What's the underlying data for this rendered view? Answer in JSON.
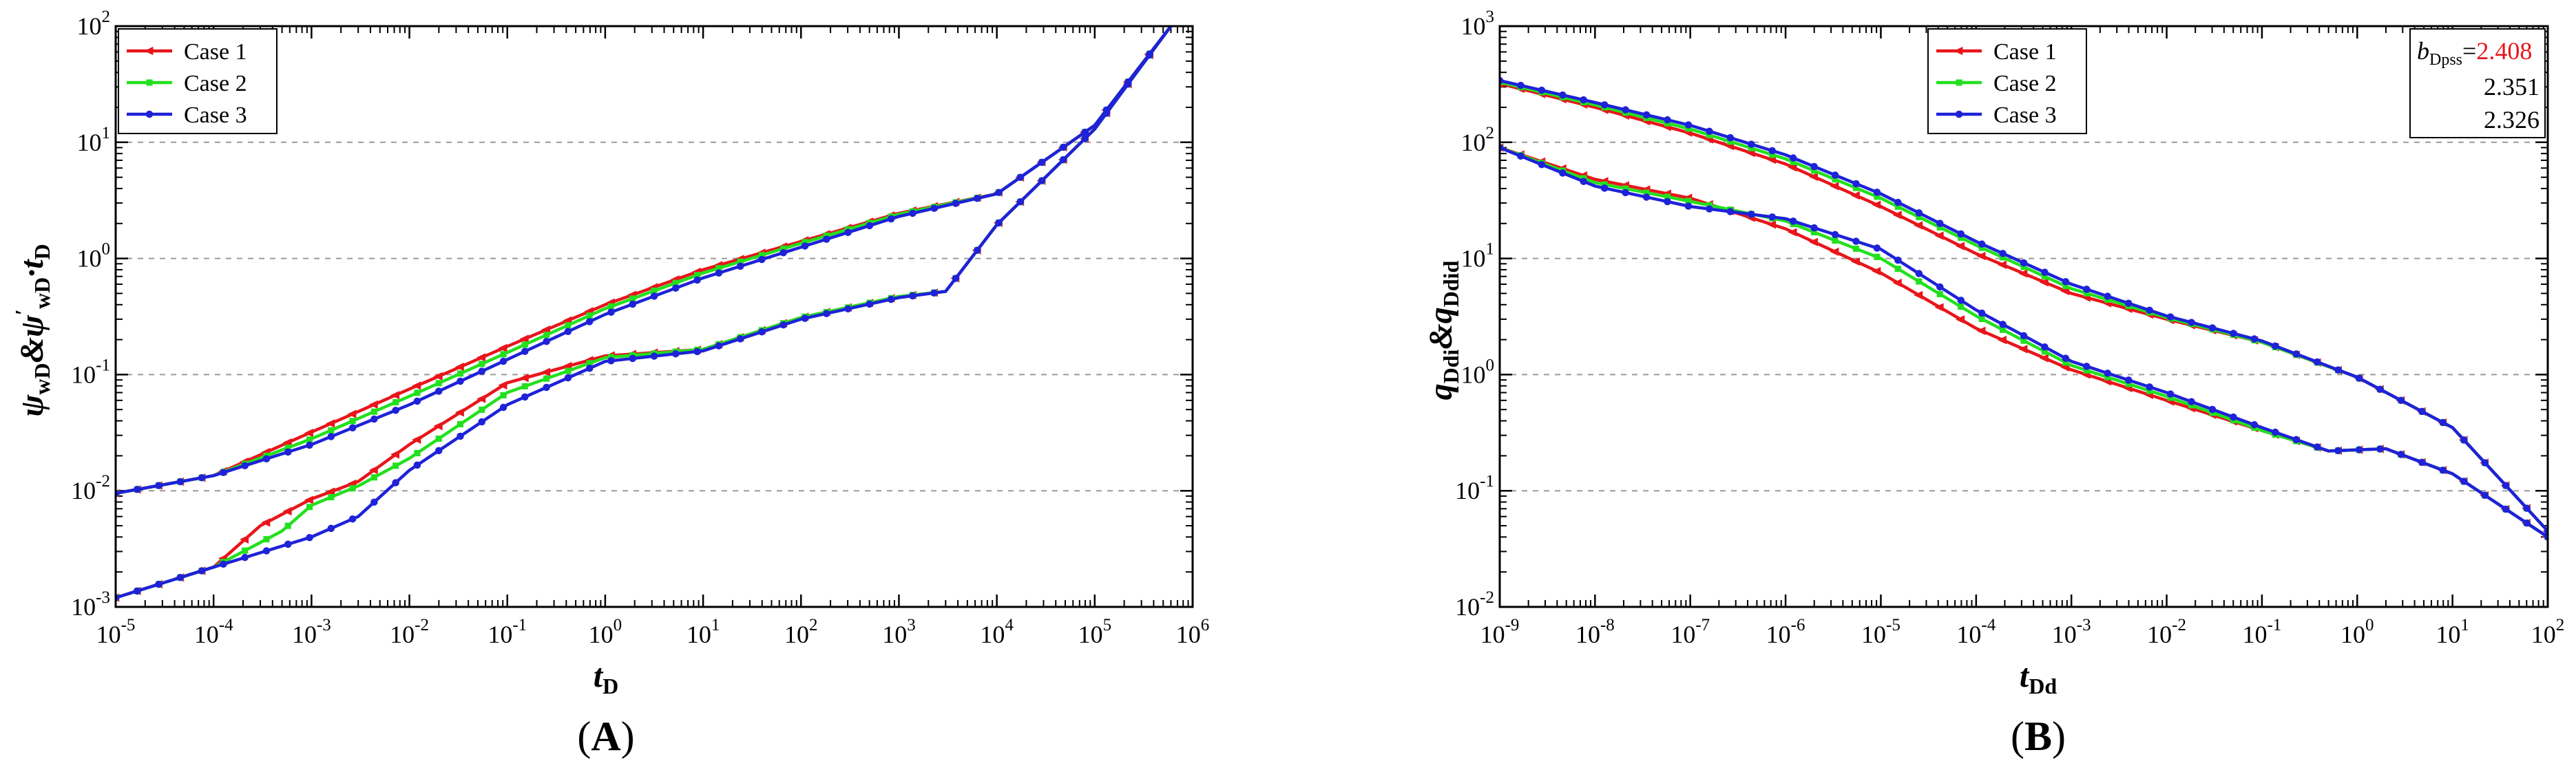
{
  "panels": [
    {
      "label": "A",
      "ylabel": {
        "a": "ψ",
        "asub": "wD",
        "amp": "&",
        "b": "ψ",
        "bsup": "′",
        "bsub": "wD",
        "dot": "·",
        "c": "t",
        "csub": "D"
      },
      "xlabel": {
        "main": "t",
        "sub": "D"
      }
    },
    {
      "label": "B",
      "ylabel": {
        "a": "q",
        "asub": "Ddi",
        "amp": "&",
        "b": "q",
        "bsub": "Ddid"
      },
      "xlabel": {
        "main": "t",
        "sub": "Dd"
      },
      "annotation": {
        "symbol": "b",
        "sub": "Dpss",
        "eq": "=",
        "values": [
          "2.408",
          "2.351",
          "2.326"
        ]
      }
    }
  ],
  "chart_data": [
    {
      "type": "line",
      "xscale": "log",
      "yscale": "log",
      "xlim": [
        1e-05,
        1000000.0
      ],
      "ylim": [
        0.001,
        100.0
      ],
      "grid": "horizontal-dashed",
      "legend": "top-left",
      "xlabel": "tD",
      "ylabel": "ψwD & ψ′wD·tD",
      "x_ticks": [
        {
          "b": "10",
          "e": "-5"
        },
        {
          "b": "10",
          "e": "-4"
        },
        {
          "b": "10",
          "e": "-3"
        },
        {
          "b": "10",
          "e": "-2"
        },
        {
          "b": "10",
          "e": "-1"
        },
        {
          "b": "10",
          "e": "0"
        },
        {
          "b": "10",
          "e": "1"
        },
        {
          "b": "10",
          "e": "2"
        },
        {
          "b": "10",
          "e": "3"
        },
        {
          "b": "10",
          "e": "4"
        },
        {
          "b": "10",
          "e": "5"
        },
        {
          "b": "10",
          "e": "6"
        }
      ],
      "y_ticks": [
        {
          "b": "10",
          "e": "-3"
        },
        {
          "b": "10",
          "e": "-2"
        },
        {
          "b": "10",
          "e": "-1"
        },
        {
          "b": "10",
          "e": "0"
        },
        {
          "b": "10",
          "e": "1"
        },
        {
          "b": "10",
          "e": "2"
        }
      ],
      "series": [
        {
          "name": "Case 1",
          "color": "#e8151b",
          "marker": "left-triangle",
          "curves": [
            {
              "x": [
                1e-05,
                0.0001,
                0.001,
                0.01,
                0.1,
                1,
                10,
                100,
                1000,
                10000,
                100000,
                600000
              ],
              "y": [
                0.0095,
                0.0135,
                0.032,
                0.075,
                0.175,
                0.4,
                0.8,
                1.4,
                2.45,
                3.6,
                14,
                100
              ]
            },
            {
              "x": [
                1e-05,
                0.0001,
                0.0003,
                0.001,
                0.003,
                0.01,
                0.1,
                1,
                10,
                100,
                1000,
                3000,
                10000,
                100000,
                600000
              ],
              "y": [
                0.0012,
                0.0022,
                0.005,
                0.0085,
                0.012,
                0.025,
                0.085,
                0.145,
                0.165,
                0.31,
                0.47,
                0.52,
                1.95,
                13,
                100
              ]
            }
          ]
        },
        {
          "name": "Case 2",
          "color": "#22e01e",
          "marker": "square",
          "curves": [
            {
              "x": [
                1e-05,
                0.0001,
                0.001,
                0.01,
                0.1,
                1,
                10,
                100,
                1000,
                10000,
                100000,
                600000
              ],
              "y": [
                0.0095,
                0.0135,
                0.028,
                0.065,
                0.155,
                0.37,
                0.75,
                1.35,
                2.4,
                3.6,
                14,
                100
              ]
            },
            {
              "x": [
                1e-05,
                0.0001,
                0.0005,
                0.001,
                0.003,
                0.01,
                0.1,
                1,
                10,
                100,
                1000,
                3000,
                10000,
                100000,
                600000
              ],
              "y": [
                0.0012,
                0.0022,
                0.0045,
                0.0075,
                0.011,
                0.019,
                0.07,
                0.14,
                0.165,
                0.31,
                0.47,
                0.52,
                1.95,
                13,
                100
              ]
            }
          ]
        },
        {
          "name": "Case 3",
          "color": "#1e22d8",
          "marker": "circle",
          "curves": [
            {
              "x": [
                1e-05,
                0.0001,
                0.001,
                0.01,
                0.1,
                1,
                10,
                100,
                1000,
                10000,
                100000,
                600000
              ],
              "y": [
                0.0095,
                0.0135,
                0.025,
                0.055,
                0.135,
                0.33,
                0.68,
                1.25,
                2.3,
                3.6,
                14,
                100
              ]
            },
            {
              "x": [
                1e-05,
                0.0001,
                0.001,
                0.003,
                0.01,
                0.1,
                1,
                10,
                100,
                1000,
                3000,
                10000,
                100000,
                600000
              ],
              "y": [
                0.0012,
                0.0022,
                0.004,
                0.006,
                0.015,
                0.055,
                0.13,
                0.16,
                0.3,
                0.46,
                0.52,
                1.95,
                13,
                100
              ]
            }
          ]
        }
      ]
    },
    {
      "type": "line",
      "xscale": "log",
      "yscale": "log",
      "xlim": [
        1e-09,
        100
      ],
      "ylim": [
        0.01,
        1000
      ],
      "grid": "horizontal-dashed",
      "legend": "top-center",
      "xlabel": "tDd",
      "ylabel": "qDdi & qDdid",
      "x_ticks": [
        {
          "b": "10",
          "e": "-9"
        },
        {
          "b": "10",
          "e": "-8"
        },
        {
          "b": "10",
          "e": "-7"
        },
        {
          "b": "10",
          "e": "-6"
        },
        {
          "b": "10",
          "e": "-5"
        },
        {
          "b": "10",
          "e": "-4"
        },
        {
          "b": "10",
          "e": "-3"
        },
        {
          "b": "10",
          "e": "-2"
        },
        {
          "b": "10",
          "e": "-1"
        },
        {
          "b": "10",
          "e": "0"
        },
        {
          "b": "10",
          "e": "1"
        },
        {
          "b": "10",
          "e": "2"
        }
      ],
      "y_ticks": [
        {
          "b": "10",
          "e": "-2"
        },
        {
          "b": "10",
          "e": "-1"
        },
        {
          "b": "10",
          "e": "0"
        },
        {
          "b": "10",
          "e": "1"
        },
        {
          "b": "10",
          "e": "2"
        },
        {
          "b": "10",
          "e": "3"
        }
      ],
      "series": [
        {
          "name": "Case 1",
          "color": "#e8151b",
          "marker": "left-triangle",
          "curves": [
            {
              "x": [
                1e-09,
                1e-08,
                1e-07,
                1e-06,
                1e-05,
                0.0001,
                0.001,
                0.01,
                0.1,
                1,
                10,
                100
              ],
              "y": [
                320,
                200,
                120,
                65,
                28,
                11,
                5,
                3,
                1.9,
                0.95,
                0.35,
                0.045
              ]
            },
            {
              "x": [
                1e-09,
                1e-08,
                1e-07,
                1e-06,
                1e-05,
                0.0001,
                0.001,
                0.01,
                0.1,
                0.5,
                2,
                10,
                100
              ],
              "y": [
                90,
                48,
                33,
                18,
                7.5,
                2.5,
                1.1,
                0.6,
                0.33,
                0.22,
                0.23,
                0.14,
                0.04
              ]
            }
          ]
        },
        {
          "name": "Case 2",
          "color": "#22e01e",
          "marker": "square",
          "curves": [
            {
              "x": [
                1e-09,
                1e-08,
                1e-07,
                1e-06,
                1e-05,
                0.0001,
                0.001,
                0.01,
                0.1,
                1,
                10,
                100
              ],
              "y": [
                330,
                210,
                130,
                72,
                33,
                13,
                5.5,
                3.1,
                1.9,
                0.95,
                0.35,
                0.045
              ]
            },
            {
              "x": [
                1e-09,
                1e-08,
                1e-07,
                1e-06,
                1e-05,
                0.0001,
                0.001,
                0.01,
                0.1,
                0.5,
                2,
                10,
                100
              ],
              "y": [
                90,
                45,
                31,
                21,
                10,
                3.2,
                1.2,
                0.65,
                0.33,
                0.22,
                0.23,
                0.14,
                0.04
              ]
            }
          ]
        },
        {
          "name": "Case 3",
          "color": "#1e22d8",
          "marker": "circle",
          "curves": [
            {
              "x": [
                1e-09,
                1e-08,
                1e-07,
                1e-06,
                1e-05,
                0.0001,
                0.001,
                0.01,
                0.1,
                1,
                10,
                100
              ],
              "y": [
                340,
                220,
                140,
                78,
                36,
                14,
                6,
                3.2,
                1.95,
                0.95,
                0.35,
                0.045
              ]
            },
            {
              "x": [
                1e-09,
                1e-08,
                1e-07,
                1e-06,
                1e-05,
                0.0001,
                0.001,
                0.01,
                0.1,
                0.5,
                2,
                10,
                100
              ],
              "y": [
                90,
                42,
                28,
                22,
                12,
                3.6,
                1.3,
                0.7,
                0.35,
                0.22,
                0.23,
                0.14,
                0.04
              ]
            }
          ]
        }
      ]
    }
  ]
}
